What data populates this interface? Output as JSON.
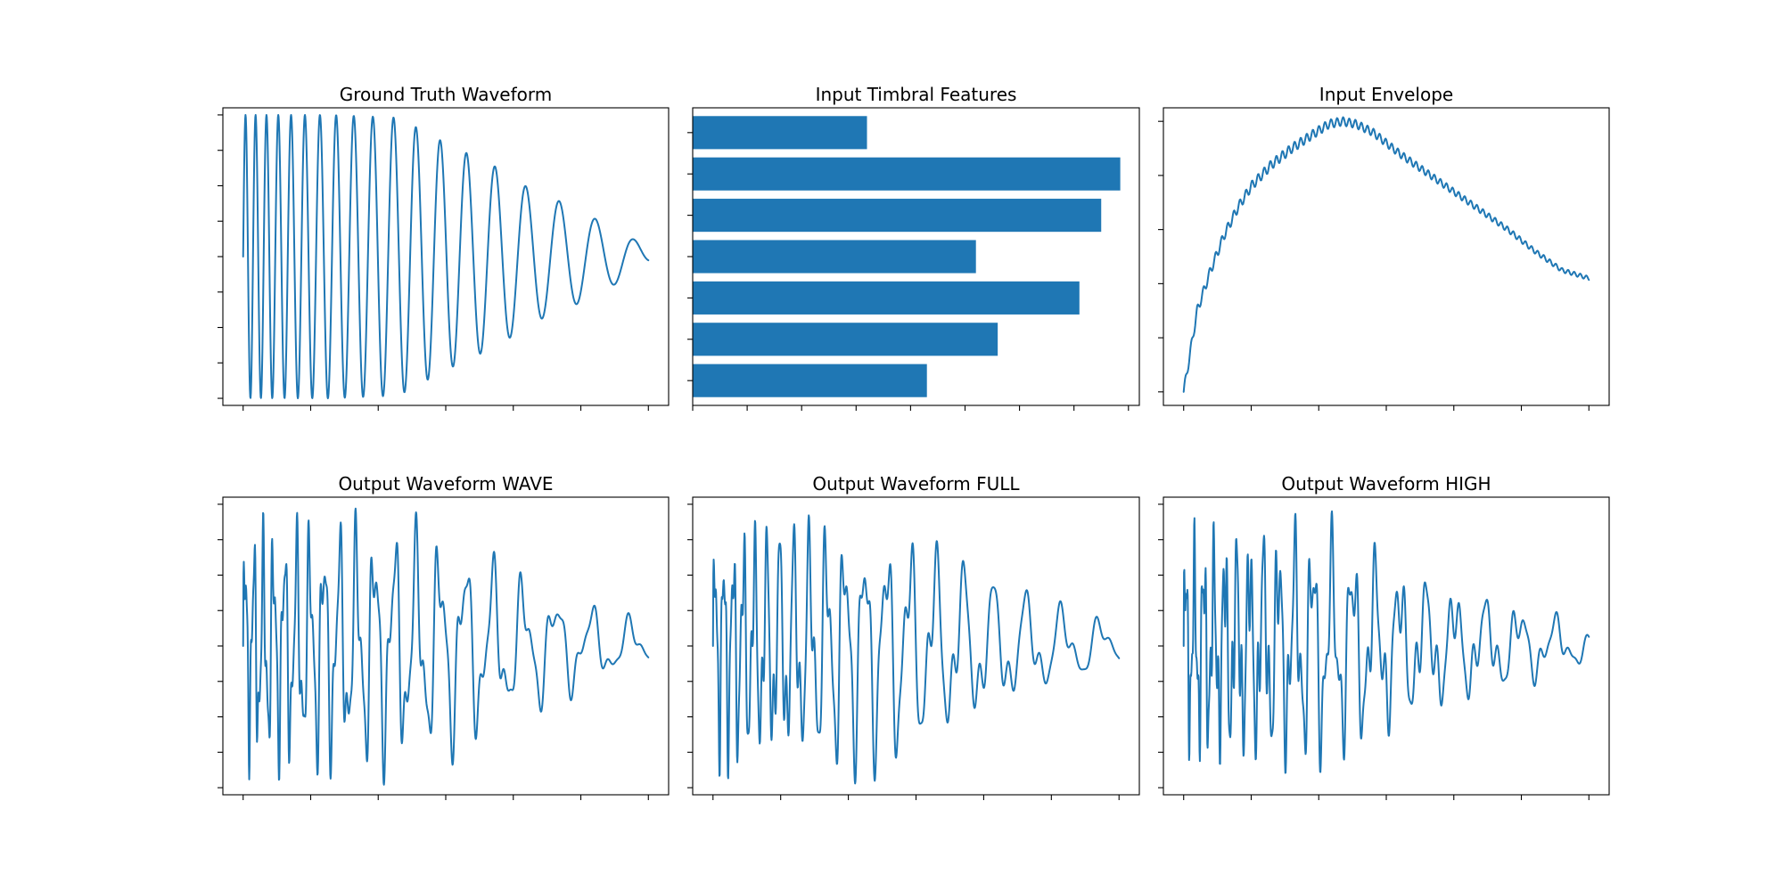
{
  "colors": {
    "series": "#1f77b4",
    "frame": "#000000"
  },
  "chart_data": [
    {
      "type": "line",
      "title": "Ground Truth Waveform",
      "xlabel": "",
      "ylabel": "",
      "grid": false,
      "legend": "none",
      "tick_labels": "hidden",
      "xlim": [
        -30,
        630
      ],
      "ylim": [
        -1.05,
        1.05
      ],
      "x_ticks": [
        0,
        100,
        200,
        300,
        400,
        500,
        600
      ],
      "y_ticks": [
        -1.0,
        -0.75,
        -0.5,
        -0.25,
        0.0,
        0.25,
        0.5,
        0.75,
        1.0
      ],
      "series": [
        {
          "signal": "chirp",
          "x_end": 600,
          "samples": 1200,
          "start_value": 0.0,
          "period_start": 14,
          "period_end": 62,
          "envelope": [
            [
              0,
              1.0
            ],
            [
              10,
              1.0
            ],
            [
              90,
              1.0
            ],
            [
              130,
              1.0
            ],
            [
              230,
              0.98
            ],
            [
              300,
              0.8
            ],
            [
              380,
              0.62
            ],
            [
              430,
              0.46
            ],
            [
              480,
              0.37
            ],
            [
              540,
              0.22
            ],
            [
              570,
              0.15
            ],
            [
              600,
              0.05
            ]
          ],
          "detail": []
        }
      ]
    },
    {
      "type": "bar",
      "orientation": "horizontal",
      "title": "Input Timbral Features",
      "xlabel": "",
      "ylabel": "",
      "grid": false,
      "legend": "none",
      "tick_labels": "hidden",
      "xlim": [
        0,
        0.82
      ],
      "ylim": [
        -0.6,
        6.6
      ],
      "x_ticks": [
        0,
        0.1,
        0.2,
        0.3,
        0.4,
        0.5,
        0.6,
        0.7,
        0.8
      ],
      "y_ticks": [
        0,
        1,
        2,
        3,
        4,
        5,
        6
      ],
      "categories": [
        "0",
        "1",
        "2",
        "3",
        "4",
        "5",
        "6"
      ],
      "values": [
        0.43,
        0.56,
        0.71,
        0.52,
        0.75,
        0.785,
        0.32
      ],
      "bar_height": 0.8
    },
    {
      "type": "line",
      "title": "Input Envelope",
      "xlabel": "",
      "ylabel": "",
      "grid": false,
      "legend": "none",
      "tick_labels": "hidden",
      "xlim": [
        -30,
        630
      ],
      "ylim": [
        -0.05,
        1.05
      ],
      "x_ticks": [
        0,
        100,
        200,
        300,
        400,
        500,
        600
      ],
      "y_ticks": [
        0.0,
        0.2,
        0.4,
        0.6,
        0.8,
        1.0
      ],
      "series": [
        {
          "signal": "envelope",
          "x_end": 600,
          "samples": 600,
          "points": [
            [
              0,
              0.0
            ],
            [
              20,
              0.3
            ],
            [
              40,
              0.45
            ],
            [
              60,
              0.58
            ],
            [
              80,
              0.68
            ],
            [
              100,
              0.76
            ],
            [
              130,
              0.84
            ],
            [
              160,
              0.9
            ],
            [
              190,
              0.95
            ],
            [
              215,
              0.99
            ],
            [
              235,
              1.0
            ],
            [
              255,
              0.99
            ],
            [
              280,
              0.96
            ],
            [
              320,
              0.88
            ],
            [
              360,
              0.81
            ],
            [
              400,
              0.74
            ],
            [
              440,
              0.67
            ],
            [
              480,
              0.6
            ],
            [
              520,
              0.52
            ],
            [
              560,
              0.45
            ],
            [
              600,
              0.42
            ]
          ],
          "ripple": {
            "amplitude": 0.018,
            "period": 9,
            "fade_start": 150,
            "fade_end": 600
          }
        }
      ]
    },
    {
      "type": "line",
      "title": "Output Waveform WAVE",
      "xlabel": "",
      "ylabel": "",
      "grid": false,
      "legend": "none",
      "tick_labels": "hidden",
      "xlim": [
        -30,
        630
      ],
      "ylim": [
        -1.05,
        1.05
      ],
      "x_ticks": [
        0,
        100,
        200,
        300,
        400,
        500,
        600
      ],
      "y_ticks": [
        -1.0,
        -0.75,
        -0.5,
        -0.25,
        0.0,
        0.25,
        0.5,
        0.75,
        1.0
      ],
      "series": [
        {
          "signal": "chirp",
          "x_end": 600,
          "samples": 1200,
          "start_value": 0.0,
          "period_start": 12,
          "period_end": 62,
          "envelope": [
            [
              0,
              0.95
            ],
            [
              60,
              0.98
            ],
            [
              150,
              1.0
            ],
            [
              200,
              1.0
            ],
            [
              260,
              0.95
            ],
            [
              330,
              0.82
            ],
            [
              370,
              0.7
            ],
            [
              420,
              0.55
            ],
            [
              480,
              0.42
            ],
            [
              540,
              0.28
            ],
            [
              600,
              0.2
            ]
          ],
          "detail": [
            {
              "amplitude": 0.45,
              "ratio": 2.3
            },
            {
              "amplitude": 0.2,
              "ratio": 3.6
            }
          ]
        }
      ]
    },
    {
      "type": "line",
      "title": "Output Waveform FULL",
      "xlabel": "",
      "ylabel": "",
      "grid": false,
      "legend": "none",
      "tick_labels": "hidden",
      "xlim": [
        -30,
        630
      ],
      "ylim": [
        -1.05,
        1.05
      ],
      "x_ticks": [
        0,
        100,
        200,
        300,
        400,
        500,
        600
      ],
      "y_ticks": [
        -1.0,
        -0.75,
        -0.5,
        -0.25,
        0.0,
        0.25,
        0.5,
        0.75,
        1.0
      ],
      "series": [
        {
          "signal": "chirp",
          "x_end": 600,
          "samples": 1200,
          "start_value": 0.0,
          "period_start": 12,
          "period_end": 62,
          "envelope": [
            [
              0,
              0.95
            ],
            [
              60,
              0.98
            ],
            [
              150,
              1.0
            ],
            [
              200,
              1.0
            ],
            [
              260,
              0.95
            ],
            [
              330,
              0.82
            ],
            [
              370,
              0.7
            ],
            [
              420,
              0.55
            ],
            [
              480,
              0.42
            ],
            [
              540,
              0.28
            ],
            [
              600,
              0.2
            ]
          ],
          "detail": [
            {
              "amplitude": 0.42,
              "ratio": 2.1
            },
            {
              "amplitude": 0.22,
              "ratio": 3.3
            }
          ]
        }
      ]
    },
    {
      "type": "line",
      "title": "Output Waveform HIGH",
      "xlabel": "",
      "ylabel": "",
      "grid": false,
      "legend": "none",
      "tick_labels": "hidden",
      "xlim": [
        -30,
        630
      ],
      "ylim": [
        -1.05,
        1.05
      ],
      "x_ticks": [
        0,
        100,
        200,
        300,
        400,
        500,
        600
      ],
      "y_ticks": [
        -1.0,
        -0.75,
        -0.5,
        -0.25,
        0.0,
        0.25,
        0.5,
        0.75,
        1.0
      ],
      "series": [
        {
          "signal": "chirp",
          "x_end": 600,
          "samples": 1200,
          "start_value": 0.0,
          "period_start": 12,
          "period_end": 60,
          "envelope": [
            [
              0,
              0.9
            ],
            [
              60,
              0.95
            ],
            [
              140,
              0.98
            ],
            [
              200,
              1.0
            ],
            [
              260,
              0.85
            ],
            [
              330,
              0.62
            ],
            [
              380,
              0.52
            ],
            [
              440,
              0.42
            ],
            [
              500,
              0.34
            ],
            [
              560,
              0.24
            ],
            [
              600,
              0.12
            ]
          ],
          "detail": [
            {
              "amplitude": 0.55,
              "ratio": 2.5
            },
            {
              "amplitude": 0.25,
              "ratio": 4.1
            }
          ]
        }
      ]
    }
  ]
}
